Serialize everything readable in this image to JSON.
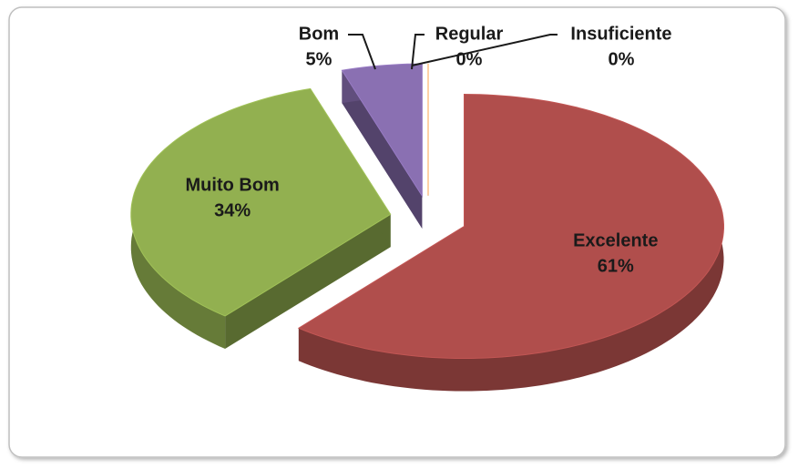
{
  "chart_data": {
    "type": "pie3d",
    "categories": [
      "Excelente",
      "Muito Bom",
      "Bom",
      "Regular",
      "Insuficiente"
    ],
    "values": [
      61,
      34,
      5,
      0,
      0
    ],
    "value_labels": [
      "61%",
      "34%",
      "5%",
      "0%",
      "0%"
    ],
    "colors": [
      "#b04e4c",
      "#92b050",
      "#8a70b2",
      "#4f81bd",
      "#f79646"
    ]
  }
}
